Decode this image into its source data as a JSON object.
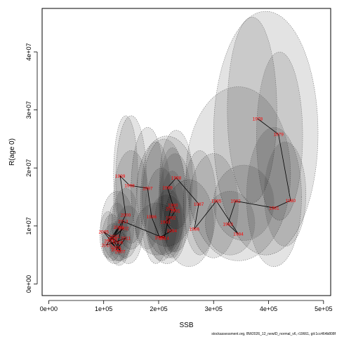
{
  "chart_data": {
    "type": "scatter",
    "xlabel": "SSB",
    "ylabel": "R(age 0)",
    "xlim": [
      -12000,
      513000
    ],
    "ylim": [
      -2000000,
      47500000
    ],
    "x_ticks": [
      0,
      100000,
      200000,
      300000,
      400000,
      500000
    ],
    "x_tick_labels": [
      "0e+00",
      "1e+05",
      "2e+05",
      "3e+05",
      "4e+05",
      "5e+05"
    ],
    "y_ticks": [
      0,
      10000000,
      20000000,
      30000000,
      40000000
    ],
    "y_tick_labels": [
      "0e+00",
      "1e+07",
      "2e+07",
      "3e+07",
      "4e+07"
    ],
    "points": [
      {
        "label": "1978",
        "ssb": 380000,
        "r": 28500000
      },
      {
        "label": "1979",
        "ssb": 418000,
        "r": 25800000
      },
      {
        "label": "1980",
        "ssb": 440000,
        "r": 14400000
      },
      {
        "label": "1981",
        "ssb": 410000,
        "r": 13100000
      },
      {
        "label": "1982",
        "ssb": 340000,
        "r": 14300000
      },
      {
        "label": "1983",
        "ssb": 326000,
        "r": 10300000
      },
      {
        "label": "1984",
        "ssb": 345000,
        "r": 8600000
      },
      {
        "label": "1985",
        "ssb": 305000,
        "r": 14300000
      },
      {
        "label": "1986",
        "ssb": 265000,
        "r": 9500000
      },
      {
        "label": "1987",
        "ssb": 273000,
        "r": 13800000
      },
      {
        "label": "1988",
        "ssb": 232000,
        "r": 18300000
      },
      {
        "label": "1989",
        "ssb": 216000,
        "r": 16600000
      },
      {
        "label": "1990",
        "ssb": 226000,
        "r": 13600000
      },
      {
        "label": "1991",
        "ssb": 230000,
        "r": 12600000
      },
      {
        "label": "1992",
        "ssb": 222000,
        "r": 11400000
      },
      {
        "label": "1993",
        "ssb": 212000,
        "r": 10700000
      },
      {
        "label": "1994",
        "ssb": 224000,
        "r": 9200000
      },
      {
        "label": "1995",
        "ssb": 202000,
        "r": 8000000
      },
      {
        "label": "1996",
        "ssb": 187000,
        "r": 11600000
      },
      {
        "label": "1997",
        "ssb": 180000,
        "r": 16500000
      },
      {
        "label": "1998",
        "ssb": 147000,
        "r": 17000000
      },
      {
        "label": "1999",
        "ssb": 130000,
        "r": 18600000
      },
      {
        "label": "2000",
        "ssb": 140000,
        "r": 11900000
      },
      {
        "label": "2001",
        "ssb": 120000,
        "r": 8200000
      },
      {
        "label": "2002",
        "ssb": 136000,
        "r": 9600000
      },
      {
        "label": "2003",
        "ssb": 110000,
        "r": 7400000
      },
      {
        "label": "2004",
        "ssb": 122000,
        "r": 6300000
      },
      {
        "label": "2005",
        "ssb": 100000,
        "r": 9000000
      },
      {
        "label": "2006",
        "ssb": 126000,
        "r": 7200000
      },
      {
        "label": "2007",
        "ssb": 130000,
        "r": 5600000
      },
      {
        "label": "2008",
        "ssb": 116000,
        "r": 7800000
      },
      {
        "label": "2009",
        "ssb": 127000,
        "r": 9800000
      },
      {
        "label": "2010",
        "ssb": 105000,
        "r": 6700000
      },
      {
        "label": "2011",
        "ssb": 140000,
        "r": 7900000
      },
      {
        "label": "2012",
        "ssb": 123000,
        "r": 5900000
      },
      {
        "label": "2013",
        "ssb": 135000,
        "r": 10800000
      },
      {
        "label": "2014",
        "ssb": 210000,
        "r": 7900000
      },
      {
        "label": "2015",
        "ssb": 222000,
        "r": 13000000
      }
    ],
    "envelopes": [
      {
        "cx": 395000,
        "cy": 26000000,
        "rx": 95000,
        "ry": 21000000
      },
      {
        "cx": 370000,
        "cy": 30000000,
        "rx": 45000,
        "ry": 16000000
      },
      {
        "cx": 420000,
        "cy": 25500000,
        "rx": 42000,
        "ry": 14500000
      },
      {
        "cx": 345000,
        "cy": 19000000,
        "rx": 95000,
        "ry": 15000000
      },
      {
        "cx": 410000,
        "cy": 15000000,
        "rx": 50000,
        "ry": 12000000
      },
      {
        "cx": 430000,
        "cy": 15500000,
        "rx": 38000,
        "ry": 9000000
      },
      {
        "cx": 355000,
        "cy": 14000000,
        "rx": 55000,
        "ry": 6500000
      },
      {
        "cx": 330000,
        "cy": 10500000,
        "rx": 45000,
        "ry": 5500000
      },
      {
        "cx": 300000,
        "cy": 13500000,
        "rx": 45000,
        "ry": 9000000
      },
      {
        "cx": 255000,
        "cy": 10500000,
        "rx": 45000,
        "ry": 7500000
      },
      {
        "cx": 275000,
        "cy": 14000000,
        "rx": 30000,
        "ry": 9000000
      },
      {
        "cx": 215000,
        "cy": 16000000,
        "rx": 55000,
        "ry": 9500000
      },
      {
        "cx": 232000,
        "cy": 18000000,
        "rx": 30000,
        "ry": 8500000
      },
      {
        "cx": 210000,
        "cy": 15000000,
        "rx": 40000,
        "ry": 10000000
      },
      {
        "cx": 225000,
        "cy": 14000000,
        "rx": 25000,
        "ry": 9500000
      },
      {
        "cx": 205000,
        "cy": 12000000,
        "rx": 30000,
        "ry": 8000000
      },
      {
        "cx": 225000,
        "cy": 12500000,
        "rx": 22000,
        "ry": 7000000
      },
      {
        "cx": 218000,
        "cy": 10500000,
        "rx": 25000,
        "ry": 6000000
      },
      {
        "cx": 198000,
        "cy": 9500000,
        "rx": 40000,
        "ry": 4500000
      },
      {
        "cx": 195000,
        "cy": 14000000,
        "rx": 28000,
        "ry": 10500000
      },
      {
        "cx": 180000,
        "cy": 16500000,
        "rx": 30000,
        "ry": 10500000
      },
      {
        "cx": 150000,
        "cy": 18000000,
        "rx": 28000,
        "ry": 11000000
      },
      {
        "cx": 140000,
        "cy": 19000000,
        "rx": 22000,
        "ry": 10000000
      },
      {
        "cx": 150000,
        "cy": 14500000,
        "rx": 32000,
        "ry": 8500000
      },
      {
        "cx": 125000,
        "cy": 10000000,
        "rx": 30000,
        "ry": 6000000
      },
      {
        "cx": 140000,
        "cy": 10500000,
        "rx": 25000,
        "ry": 6000000
      },
      {
        "cx": 115000,
        "cy": 8000000,
        "rx": 18000,
        "ry": 4000000
      },
      {
        "cx": 130000,
        "cy": 7500000,
        "rx": 20000,
        "ry": 3500000
      },
      {
        "cx": 120000,
        "cy": 7000000,
        "rx": 22000,
        "ry": 3500000
      },
      {
        "cx": 128000,
        "cy": 6200000,
        "rx": 17000,
        "ry": 3000000
      },
      {
        "cx": 108000,
        "cy": 8500000,
        "rx": 15000,
        "ry": 4000000
      },
      {
        "cx": 125000,
        "cy": 9500000,
        "rx": 18000,
        "ry": 4500000
      },
      {
        "cx": 145000,
        "cy": 8500000,
        "rx": 25000,
        "ry": 5000000
      },
      {
        "cx": 215000,
        "cy": 9500000,
        "rx": 35000,
        "ry": 6000000
      },
      {
        "cx": 230000,
        "cy": 14000000,
        "rx": 30000,
        "ry": 8500000
      }
    ]
  },
  "footer": "stockassessment.org, BW2026_12_newID_normal_v6, r19661, git:1cc464b808f"
}
